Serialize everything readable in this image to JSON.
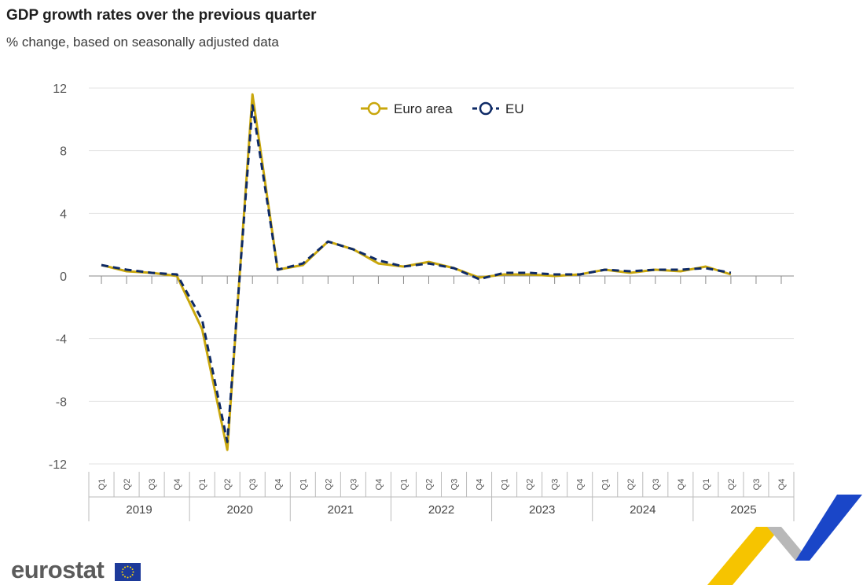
{
  "chart_data": {
    "type": "line",
    "title": "GDP growth rates over the previous quarter",
    "subtitle": "% change, based on seasonally adjusted data",
    "xlabel": "",
    "ylabel": "",
    "ylim": [
      -12,
      12
    ],
    "yticks": [
      12,
      8,
      4,
      0,
      -4,
      -8,
      -12
    ],
    "years": [
      "2019",
      "2020",
      "2021",
      "2022",
      "2023",
      "2024",
      "2025"
    ],
    "quarters": [
      "Q1",
      "Q2",
      "Q3",
      "Q4"
    ],
    "grid": true,
    "legend_position": "top-center",
    "series": [
      {
        "name": "Euro area",
        "color": "#c9a70c",
        "style": "solid",
        "values": [
          0.7,
          0.3,
          0.2,
          0.0,
          -3.4,
          -11.1,
          11.6,
          0.4,
          0.7,
          2.2,
          1.7,
          0.8,
          0.6,
          0.9,
          0.5,
          -0.1,
          0.1,
          0.1,
          0.0,
          0.1,
          0.4,
          0.2,
          0.4,
          0.3,
          0.6,
          0.1,
          null,
          null
        ]
      },
      {
        "name": "EU",
        "color": "#0e2a66",
        "style": "dashed",
        "values": [
          0.7,
          0.4,
          0.2,
          0.1,
          -2.8,
          -10.6,
          10.9,
          0.4,
          0.8,
          2.2,
          1.7,
          1.0,
          0.6,
          0.8,
          0.5,
          -0.2,
          0.2,
          0.2,
          0.1,
          0.1,
          0.4,
          0.3,
          0.4,
          0.4,
          0.5,
          0.2,
          null,
          null
        ]
      }
    ]
  },
  "branding": {
    "logo_text": "eurostat",
    "logo_icon": "eu-flag-icon",
    "decoration_icon": "eurostat-ribbon-icon",
    "colors": {
      "ribbon_yellow": "#f6c400",
      "ribbon_blue": "#1a46c8",
      "ribbon_grey": "#b8b8b8",
      "flag_blue": "#1d3a9a",
      "flag_star": "#ffd800"
    }
  }
}
